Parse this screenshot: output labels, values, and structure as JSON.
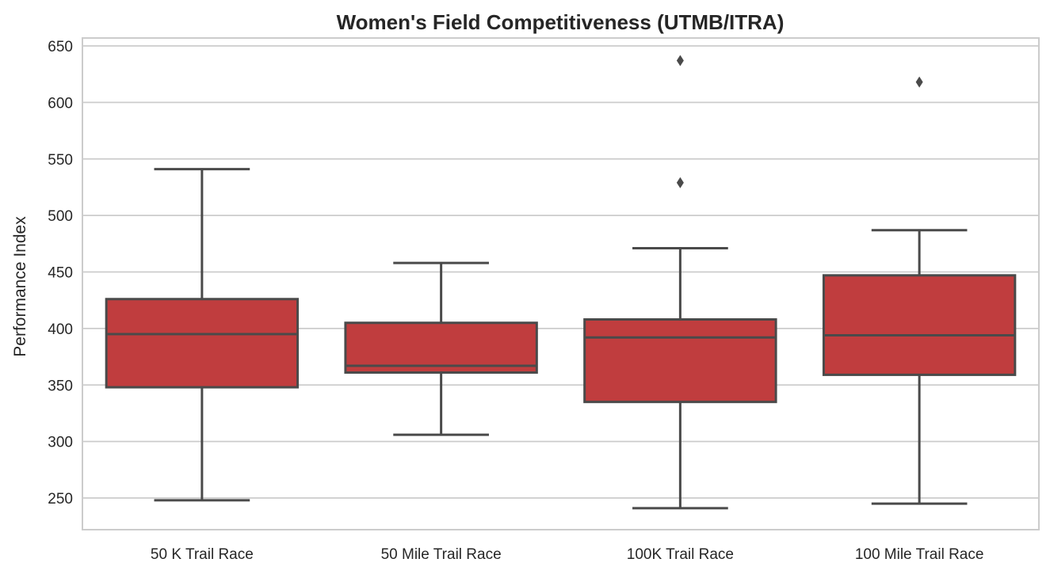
{
  "chart_data": {
    "type": "box",
    "title": "Women's Field Competitiveness (UTMB/ITRA)",
    "xlabel": "",
    "ylabel": "Performance Index",
    "ylim": [
      222,
      657
    ],
    "yticks": [
      250,
      300,
      350,
      400,
      450,
      500,
      550,
      600,
      650
    ],
    "grid": true,
    "box_color": "#c03d3e",
    "line_color": "#4a4a4a",
    "grid_color": "#cccccc",
    "categories": [
      "50 K Trail Race",
      "50 Mile Trail Race",
      "100K Trail Race",
      "100 Mile Trail Race"
    ],
    "boxes": [
      {
        "category": "50 K Trail Race",
        "whisker_low": 248,
        "q1": 348,
        "median": 395,
        "q3": 426,
        "whisker_high": 541,
        "outliers": []
      },
      {
        "category": "50 Mile Trail Race",
        "whisker_low": 306,
        "q1": 361,
        "median": 367,
        "q3": 405,
        "whisker_high": 458,
        "outliers": []
      },
      {
        "category": "100K Trail Race",
        "whisker_low": 241,
        "q1": 335,
        "median": 392,
        "q3": 408,
        "whisker_high": 471,
        "outliers": [
          529,
          637
        ]
      },
      {
        "category": "100 Mile Trail Race",
        "whisker_low": 245,
        "q1": 359,
        "median": 394,
        "q3": 447,
        "whisker_high": 487,
        "outliers": [
          618
        ]
      }
    ]
  }
}
